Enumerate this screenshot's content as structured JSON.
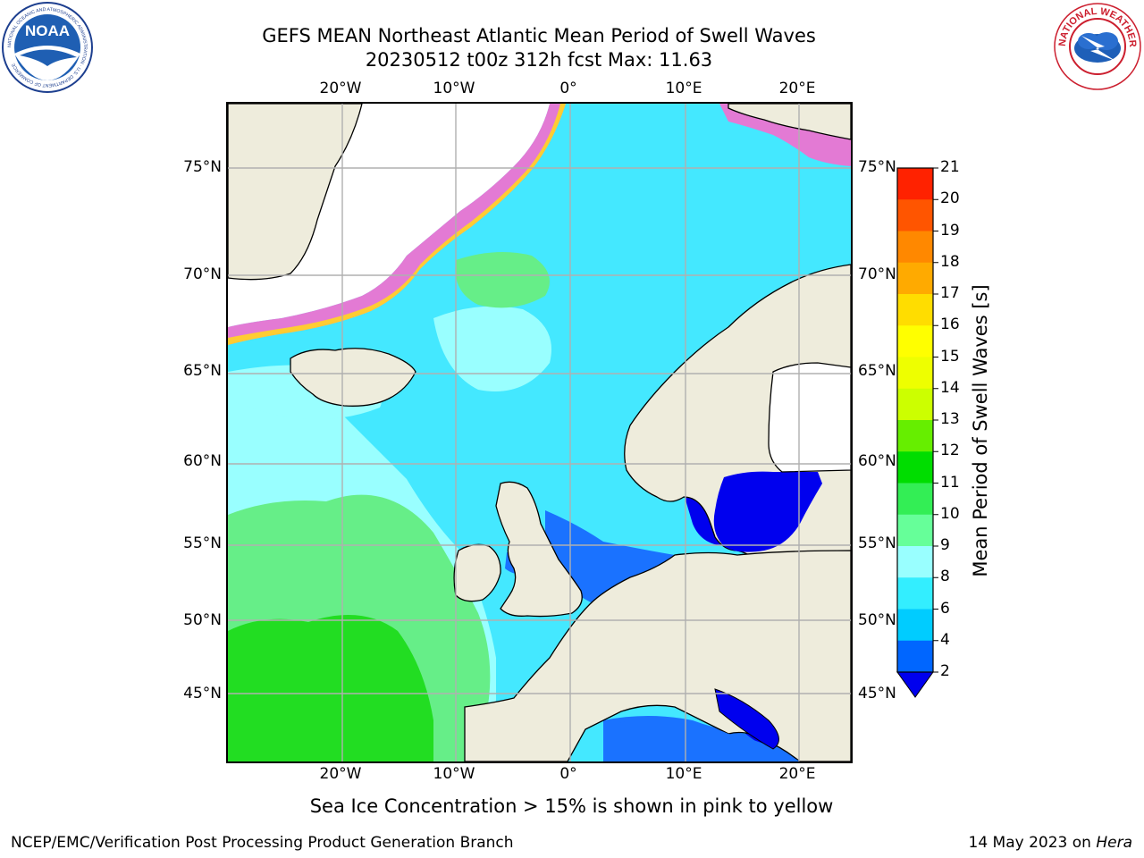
{
  "title_line1": "GEFS MEAN Northeast Atlantic Mean Period of Swell Waves",
  "title_line2": "20230512 t00z 312h fcst   Max: 11.63",
  "lon_ticks": [
    "20°W",
    "10°W",
    "0°",
    "10°E",
    "20°E"
  ],
  "lat_ticks": [
    "75°N",
    "70°N",
    "65°N",
    "60°N",
    "55°N",
    "50°N",
    "45°N"
  ],
  "colorbar": {
    "title": "Mean Period of Swell Waves [s]",
    "levels": [
      "2",
      "4",
      "6",
      "8",
      "9",
      "10",
      "11",
      "12",
      "13",
      "14",
      "15",
      "16",
      "17",
      "18",
      "19",
      "20",
      "21"
    ],
    "colors": [
      "#0066ff",
      "#00ccff",
      "#33eeff",
      "#99ffff",
      "#66ff99",
      "#33ee55",
      "#00dd00",
      "#66ee00",
      "#ccff00",
      "#eeff00",
      "#ffff00",
      "#ffdd00",
      "#ffaa00",
      "#ff8800",
      "#ff5500",
      "#ff2200"
    ],
    "under_color": "#0000ee"
  },
  "map": {
    "ocean_base": "#44e8ff",
    "land": "#eeecdc",
    "grid": "#b0b0b0"
  },
  "subtitle": "Sea Ice Concentration > 15% is shown in pink to yellow",
  "footer_left": "NCEP/EMC/Verification Post Processing Product Generation Branch",
  "footer_date": "14 May 2023 on ",
  "footer_host": "Hera",
  "logos": {
    "noaa_text": "NOAA",
    "noaa_ring": "NATIONAL OCEANIC AND ATMOSPHERIC ADMINISTRATION · U.S. DEPARTMENT OF COMMERCE",
    "nws_ring": "NATIONAL WEATHER SERVICE"
  }
}
